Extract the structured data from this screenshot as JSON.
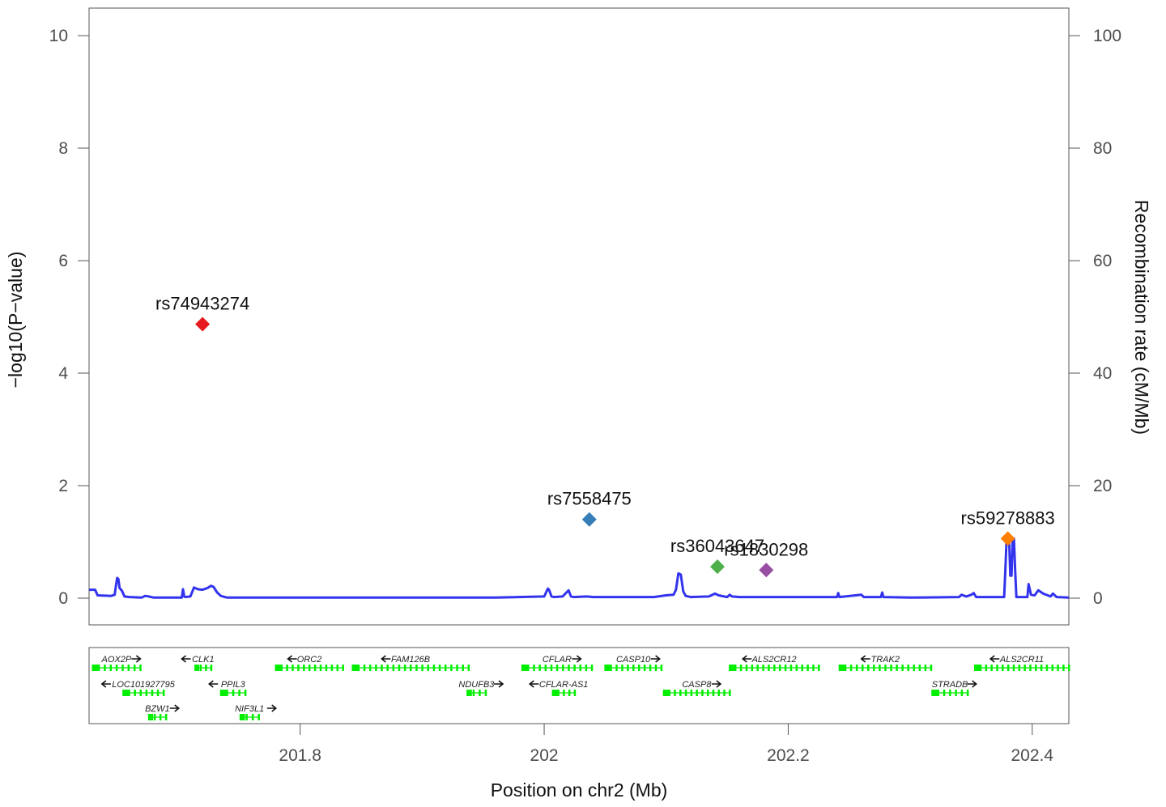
{
  "chart_data": {
    "type": "scatter",
    "title": "",
    "xlabel": "Position on chr2 (Mb)",
    "ylabel_left": "−log10(P−value)",
    "ylabel_right": "Recombination rate (cM/Mb)",
    "xlim": [
      201.627,
      202.43
    ],
    "ylim_left": [
      0,
      10
    ],
    "ylim_right": [
      0,
      100
    ],
    "x_ticks": [
      201.8,
      202,
      202.2,
      202.4
    ],
    "x_tick_labels": [
      "201.8",
      "202",
      "202.2",
      "202.4"
    ],
    "y_ticks_left": [
      0,
      2,
      4,
      6,
      8,
      10
    ],
    "y_tick_labels_left": [
      "0",
      "2",
      "4",
      "6",
      "8",
      "10"
    ],
    "y_ticks_right": [
      0,
      20,
      40,
      60,
      80,
      100
    ],
    "y_tick_labels_right": [
      "0",
      "20",
      "40",
      "60",
      "80",
      "100"
    ],
    "snps": [
      {
        "label": "rs74943274",
        "x": 201.72,
        "y": 4.87,
        "color": "#e41a1c"
      },
      {
        "label": "rs7558475",
        "x": 202.037,
        "y": 1.4,
        "color": "#377eb8"
      },
      {
        "label": "rs36043647",
        "x": 202.142,
        "y": 0.56,
        "color": "#4daf4a"
      },
      {
        "label": "rs1830298",
        "x": 202.182,
        "y": 0.5,
        "color": "#984ea3"
      },
      {
        "label": "rs59278883",
        "x": 202.38,
        "y": 1.06,
        "color": "#ff7f00"
      }
    ],
    "recombination_color": "#3333ee",
    "recombination_rate": {
      "x": [
        201.627,
        201.632,
        201.634,
        201.645,
        201.648,
        201.649,
        201.65,
        201.651,
        201.652,
        201.654,
        201.656,
        201.66,
        201.67,
        201.673,
        201.676,
        201.68,
        201.69,
        201.703,
        201.704,
        201.705,
        201.706,
        201.71,
        201.713,
        201.716,
        201.72,
        201.724,
        201.727,
        201.729,
        201.732,
        201.735,
        201.74,
        201.76,
        201.8,
        201.9,
        201.96,
        202.0,
        202.003,
        202.004,
        202.006,
        202.008,
        202.015,
        202.02,
        202.022,
        202.024,
        202.035,
        202.04,
        202.09,
        202.1,
        202.106,
        202.108,
        202.11,
        202.112,
        202.114,
        202.116,
        202.12,
        202.135,
        202.14,
        202.143,
        202.15,
        202.152,
        202.154,
        202.16,
        202.2,
        202.24,
        202.241,
        202.242,
        202.26,
        202.262,
        202.276,
        202.277,
        202.278,
        202.3,
        202.34,
        202.342,
        202.346,
        202.35,
        202.352,
        202.354,
        202.377,
        202.378,
        202.379,
        202.381,
        202.382,
        202.383,
        202.384,
        202.385,
        202.386,
        202.387,
        202.396,
        202.397,
        202.399,
        202.402,
        202.405,
        202.409,
        202.415,
        202.417,
        202.42,
        202.43
      ],
      "y": [
        1.5,
        1.5,
        0.5,
        0.4,
        0.6,
        2.2,
        3.6,
        3.4,
        1.8,
        1.3,
        0.3,
        0.2,
        0.1,
        0.4,
        0.3,
        0.1,
        0.1,
        0.1,
        1.6,
        0.3,
        0.2,
        0.3,
        1.9,
        1.6,
        1.5,
        1.8,
        2.2,
        2.0,
        1.0,
        0.4,
        0.1,
        0.1,
        0.1,
        0.1,
        0.1,
        0.3,
        1.7,
        1.5,
        0.3,
        0.2,
        0.3,
        1.4,
        0.3,
        0.2,
        0.3,
        0.2,
        0.2,
        0.5,
        0.6,
        1.5,
        4.4,
        4.2,
        1.2,
        0.4,
        0.2,
        0.3,
        0.8,
        0.5,
        0.2,
        0.6,
        0.3,
        0.2,
        0.2,
        0.2,
        0.9,
        0.2,
        0.6,
        0.2,
        0.2,
        1.0,
        0.2,
        0.1,
        0.2,
        0.6,
        0.3,
        0.6,
        0.9,
        0.2,
        0.2,
        5.0,
        10.8,
        10.8,
        4.0,
        4.0,
        10.6,
        10.6,
        5.0,
        0.2,
        0.2,
        2.5,
        0.6,
        0.5,
        1.4,
        0.8,
        0.3,
        0.8,
        0.2,
        0.1
      ]
    },
    "genes": [
      {
        "name": "AOX2P",
        "strand": "+",
        "start": 201.63,
        "end": 201.669,
        "row": 0
      },
      {
        "name": "CLK1",
        "strand": "-",
        "start": 201.714,
        "end": 201.727,
        "row": 0
      },
      {
        "name": "ORC2",
        "strand": "-",
        "start": 201.78,
        "end": 201.835,
        "row": 0
      },
      {
        "name": "FAM126B",
        "strand": "-",
        "start": 201.843,
        "end": 201.938,
        "row": 0
      },
      {
        "name": "CFLAR",
        "strand": "+",
        "start": 201.982,
        "end": 202.039,
        "row": 0
      },
      {
        "name": "CASP10",
        "strand": "+",
        "start": 202.05,
        "end": 202.096,
        "row": 0
      },
      {
        "name": "ALS2CR12",
        "strand": "-",
        "start": 202.152,
        "end": 202.225,
        "row": 0
      },
      {
        "name": "TRAK2",
        "strand": "-",
        "start": 202.242,
        "end": 202.317,
        "row": 0
      },
      {
        "name": "ALS2CR11",
        "strand": "-",
        "start": 202.353,
        "end": 202.43,
        "row": 0
      },
      {
        "name": "LOC101927795",
        "strand": "-",
        "start": 201.655,
        "end": 201.688,
        "row": 1
      },
      {
        "name": "PPIL3",
        "strand": "-",
        "start": 201.735,
        "end": 201.755,
        "row": 1
      },
      {
        "name": "NDUFB3",
        "strand": "+",
        "start": 201.937,
        "end": 201.952,
        "row": 1
      },
      {
        "name": "CFLAR-AS1",
        "strand": "-",
        "start": 202.007,
        "end": 202.025,
        "row": 1
      },
      {
        "name": "CASP8",
        "strand": "+",
        "start": 202.098,
        "end": 202.152,
        "row": 1
      },
      {
        "name": "STRADB",
        "strand": "+",
        "start": 202.318,
        "end": 202.347,
        "row": 1
      },
      {
        "name": "BZW1",
        "strand": "+",
        "start": 201.676,
        "end": 201.69,
        "row": 2
      },
      {
        "name": "NIF3L1",
        "strand": "+",
        "start": 201.751,
        "end": 201.766,
        "row": 2
      }
    ],
    "gene_color": "#00ee00",
    "grid": false,
    "legend": "none"
  }
}
